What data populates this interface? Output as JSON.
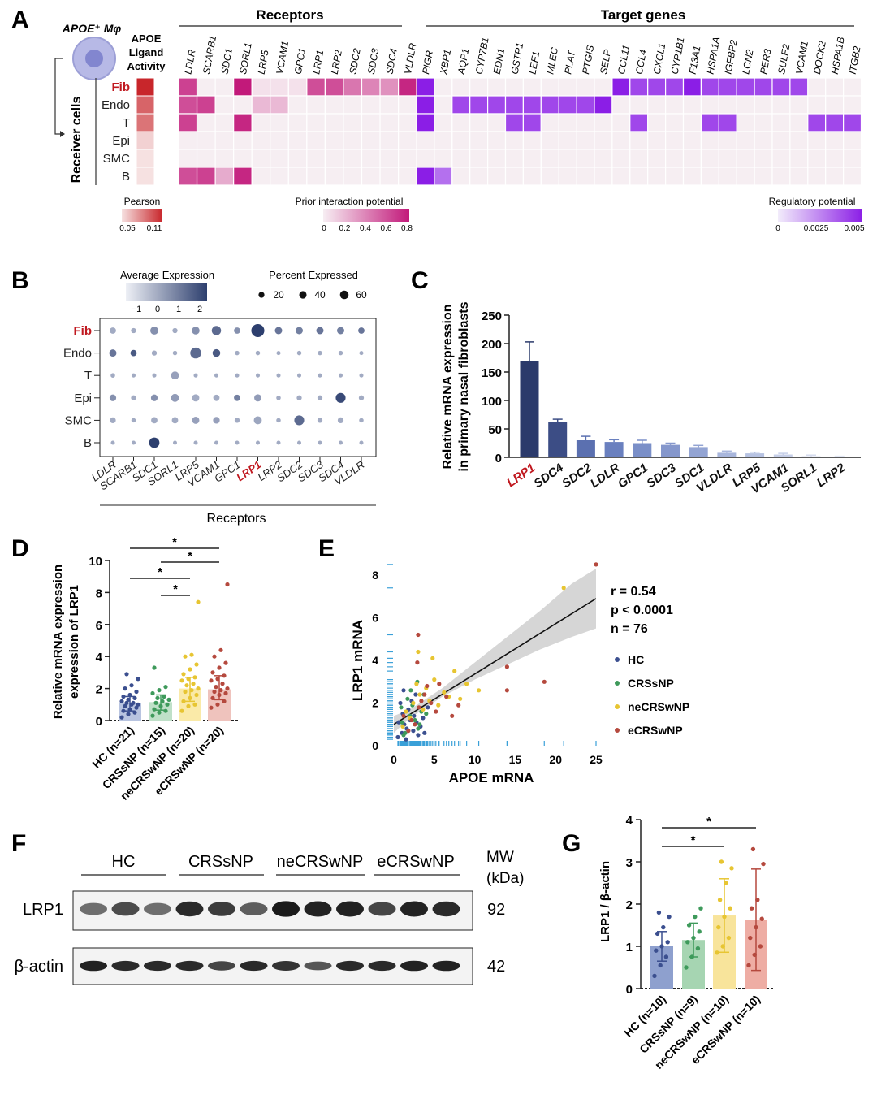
{
  "panels": {
    "A": "A",
    "B": "B",
    "C": "C",
    "D": "D",
    "E": "E",
    "F": "F",
    "G": "G"
  },
  "chart_data": [
    {
      "id": "A",
      "type": "heatmap",
      "title_cell": "APOE⁺ Mφ",
      "ligand_activity_label": "APOE Ligand Activity",
      "receiver_label": "Receiver cells",
      "rows": [
        "Fib",
        "Endo",
        "T",
        "Epi",
        "SMC",
        "B"
      ],
      "highlight_row": "Fib",
      "pearson": [
        0.11,
        0.09,
        0.085,
        0.055,
        0.05,
        0.05
      ],
      "receptors_header": "Receptors",
      "receptors": [
        "LDLR",
        "SCARB1",
        "SDC1",
        "SORL1",
        "LRP5",
        "VCAM1",
        "GPC1",
        "LRP1",
        "LRP2",
        "SDC2",
        "SDC3",
        "SDC4",
        "VLDLR"
      ],
      "receptor_matrix": [
        [
          0.65,
          0,
          0,
          0.8,
          0.05,
          0.05,
          0.05,
          0.6,
          0.6,
          0.45,
          0.4,
          0.35,
          0.75
        ],
        [
          0.6,
          0.65,
          0,
          0,
          0.2,
          0.2,
          0,
          0,
          0,
          0,
          0,
          0,
          0
        ],
        [
          0.65,
          0,
          0,
          0.75,
          0,
          0,
          0,
          0,
          0,
          0,
          0,
          0,
          0
        ],
        [
          0,
          0,
          0,
          0,
          0,
          0,
          0,
          0,
          0,
          0,
          0,
          0,
          0
        ],
        [
          0,
          0,
          0,
          0,
          0,
          0,
          0,
          0,
          0,
          0,
          0,
          0,
          0
        ],
        [
          0.6,
          0.65,
          0.25,
          0.75,
          0,
          0,
          0,
          0,
          0,
          0,
          0,
          0,
          0
        ]
      ],
      "targets_header": "Target genes",
      "targets": [
        "PIGR",
        "XBP1",
        "AQP1",
        "CYP7B1",
        "EDN1",
        "GSTP1",
        "LEF1",
        "MLEC",
        "PLAT",
        "PTGIS",
        "SELP",
        "CCL11",
        "CCL4",
        "CXCL1",
        "CYP1B1",
        "F13A1",
        "HSPA1A",
        "IGFBP2",
        "LCN2",
        "PER3",
        "SULF2",
        "VCAM1",
        "DOCK2",
        "HSPA1B",
        "ITGB2"
      ],
      "target_matrix": [
        [
          0.005,
          0,
          0,
          0,
          0,
          0,
          0,
          0,
          0,
          0,
          0,
          0.005,
          0.004,
          0.004,
          0.004,
          0.005,
          0.004,
          0.004,
          0.004,
          0.004,
          0.004,
          0.004,
          0,
          0,
          0
        ],
        [
          0.005,
          0,
          0.004,
          0.004,
          0.004,
          0.004,
          0.004,
          0.004,
          0.004,
          0.004,
          0.005,
          0,
          0,
          0,
          0,
          0,
          0,
          0,
          0,
          0,
          0,
          0,
          0,
          0,
          0
        ],
        [
          0.005,
          0,
          0,
          0,
          0,
          0.004,
          0.004,
          0,
          0,
          0,
          0,
          0,
          0.004,
          0,
          0,
          0,
          0.004,
          0.004,
          0,
          0,
          0,
          0,
          0.004,
          0.004,
          0.004
        ],
        [
          0,
          0,
          0,
          0,
          0,
          0,
          0,
          0,
          0,
          0,
          0,
          0,
          0,
          0,
          0,
          0,
          0,
          0,
          0,
          0,
          0,
          0,
          0,
          0,
          0
        ],
        [
          0,
          0,
          0,
          0,
          0,
          0,
          0,
          0,
          0,
          0,
          0,
          0,
          0,
          0,
          0,
          0,
          0,
          0,
          0,
          0,
          0,
          0,
          0,
          0,
          0
        ],
        [
          0.005,
          0.003,
          0,
          0,
          0,
          0,
          0,
          0,
          0,
          0,
          0,
          0,
          0,
          0,
          0,
          0,
          0,
          0,
          0,
          0,
          0,
          0,
          0,
          0,
          0
        ]
      ],
      "legend_pearson": {
        "title": "Pearson",
        "ticks": [
          "0.05",
          "0.11"
        ],
        "colors": [
          "#f6e1e1",
          "#c8262b"
        ]
      },
      "legend_prior": {
        "title": "Prior interaction potential",
        "ticks": [
          "0",
          "0.2",
          "0.4",
          "0.6",
          "0.8"
        ],
        "colors": [
          "#f7eef3",
          "#c2197a"
        ]
      },
      "legend_reg": {
        "title": "Regulatory potential",
        "ticks": [
          "0",
          "0.0025",
          "0.005"
        ],
        "colors": [
          "#f2ecfb",
          "#8b1ee6"
        ]
      },
      "empty_color": "#f6eef2"
    },
    {
      "id": "B",
      "type": "scatter",
      "subtype": "dotplot",
      "rows": [
        "Fib",
        "Endo",
        "T",
        "Epi",
        "SMC",
        "B"
      ],
      "highlight_row": "Fib",
      "columns": [
        "LDLR",
        "SCARB1",
        "SDC1",
        "SORL1",
        "LRP5",
        "VCAM1",
        "GPC1",
        "LRP1",
        "LRP2",
        "SDC2",
        "SDC3",
        "SDC4",
        "VLDLR"
      ],
      "highlight_column": "LRP1",
      "xlabel": "Receptors",
      "legend_expr": {
        "title": "Average Expression",
        "ticks": [
          "−1",
          "0",
          "1",
          "2"
        ],
        "colors": [
          "#eef0f6",
          "#2d3f6e"
        ]
      },
      "legend_pct": {
        "title": "Percent Expressed",
        "ticks": [
          20,
          40,
          60
        ]
      },
      "pct": [
        [
          10,
          5,
          20,
          5,
          18,
          30,
          10,
          70,
          15,
          15,
          15,
          15,
          10
        ],
        [
          15,
          10,
          5,
          3,
          45,
          18,
          3,
          3,
          2,
          3,
          3,
          3,
          2
        ],
        [
          3,
          2,
          2,
          20,
          2,
          2,
          2,
          2,
          2,
          2,
          2,
          2,
          2
        ],
        [
          12,
          5,
          12,
          20,
          15,
          10,
          10,
          15,
          3,
          5,
          5,
          35,
          5
        ],
        [
          8,
          3,
          10,
          10,
          15,
          12,
          5,
          20,
          3,
          35,
          5,
          8,
          3
        ],
        [
          2,
          2,
          40,
          2,
          2,
          2,
          2,
          2,
          2,
          2,
          2,
          2,
          2
        ]
      ],
      "expr": [
        [
          0,
          0,
          0.5,
          0,
          0.5,
          1.2,
          0.5,
          2,
          1,
          0.8,
          1,
          0.8,
          1
        ],
        [
          1,
          1.5,
          0,
          0,
          1.2,
          1.5,
          0,
          0,
          0,
          0,
          0,
          0,
          0
        ],
        [
          0,
          0,
          0,
          0.2,
          0,
          0,
          0,
          0,
          0,
          0,
          0,
          0,
          0
        ],
        [
          0.5,
          0,
          0.5,
          0.3,
          0,
          0,
          0.8,
          0.3,
          0,
          0,
          0,
          1.8,
          0
        ],
        [
          0,
          0,
          0,
          0,
          0.2,
          0.2,
          0,
          0.1,
          0,
          1.2,
          0,
          0,
          0
        ],
        [
          0,
          0,
          2,
          0,
          0,
          0,
          0,
          0,
          0,
          0,
          0,
          0,
          0
        ]
      ]
    },
    {
      "id": "C",
      "type": "bar",
      "categories": [
        "LRP1",
        "SDC4",
        "SDC2",
        "LDLR",
        "GPC1",
        "SDC3",
        "SDC1",
        "VLDLR",
        "LRP5",
        "VCAM1",
        "SORL1",
        "LRP2"
      ],
      "highlight_category": "LRP1",
      "values": [
        170,
        62,
        30,
        27,
        25,
        22,
        18,
        8,
        7,
        5,
        2,
        1
      ],
      "errors": [
        33,
        5,
        7,
        4,
        5,
        3,
        3,
        3,
        2,
        2,
        2,
        1
      ],
      "ylabel": "Relative mRNA expression in primary nasal fibroblasts",
      "ylim": [
        0,
        250
      ],
      "yticks": [
        0,
        50,
        100,
        150,
        200,
        250
      ],
      "colors": [
        "#2b3a6b",
        "#3c4d85",
        "#5b70b0",
        "#6a80bf",
        "#7a8fc8",
        "#8597cc",
        "#93a4d3",
        "#a8b6dc",
        "#b6c2e2",
        "#c6cfe8",
        "#d4dbee",
        "#e2e7f4"
      ]
    },
    {
      "id": "D",
      "type": "bar",
      "categories": [
        "HC (n=21)",
        "CRSsNP (n=15)",
        "neCRSwNP (n=20)",
        "eCRSwNP (n=20)"
      ],
      "values": [
        1.1,
        1.15,
        2.0,
        1.95
      ],
      "errors_low": [
        0.6,
        0.65,
        1.2,
        1.3
      ],
      "errors_high": [
        1.5,
        1.6,
        2.7,
        2.8
      ],
      "ylabel": "Relative mRNA expression of LRP1",
      "ylim": [
        0,
        10
      ],
      "yticks": [
        0,
        2,
        4,
        6,
        8,
        10
      ],
      "bar_colors": [
        "#b8c4e0",
        "#bfe0c8",
        "#faeaa8",
        "#efc3bd"
      ],
      "dot_colors": [
        "#3b4f8f",
        "#3e9a5b",
        "#e7c532",
        "#b5493e"
      ],
      "points": [
        [
          0.2,
          0.4,
          0.5,
          0.6,
          0.7,
          0.8,
          0.9,
          1.0,
          1.0,
          1.1,
          1.1,
          1.2,
          1.3,
          1.4,
          1.5,
          1.6,
          1.8,
          2.0,
          2.2,
          2.6,
          2.9
        ],
        [
          0.3,
          0.5,
          0.6,
          0.7,
          0.9,
          1.0,
          1.1,
          1.2,
          1.3,
          1.4,
          1.5,
          1.7,
          1.9,
          2.1,
          3.3
        ],
        [
          0.6,
          0.9,
          1.0,
          1.2,
          1.4,
          1.6,
          1.8,
          1.9,
          2.0,
          2.2,
          2.3,
          2.5,
          2.6,
          2.7,
          2.9,
          3.2,
          3.5,
          4.0,
          4.1,
          7.4
        ],
        [
          0.8,
          1.0,
          1.2,
          1.4,
          1.6,
          1.7,
          1.8,
          1.9,
          2.0,
          2.1,
          2.3,
          2.5,
          2.6,
          2.8,
          3.0,
          3.3,
          3.6,
          4.0,
          4.4,
          8.5
        ]
      ],
      "significance": [
        {
          "from": 0,
          "to": 3,
          "label": "*"
        },
        {
          "from": 1,
          "to": 3,
          "label": "*"
        },
        {
          "from": 0,
          "to": 2,
          "label": "*"
        },
        {
          "from": 1,
          "to": 2,
          "label": "*"
        }
      ]
    },
    {
      "id": "E",
      "type": "scatter",
      "xlabel": "APOE mRNA",
      "ylabel": "LRP1 mRNA",
      "xlim": [
        0,
        25
      ],
      "ylim": [
        0,
        8
      ],
      "xticks": [
        0,
        5,
        10,
        15,
        20,
        25
      ],
      "yticks": [
        0,
        2,
        4,
        6,
        8
      ],
      "stats": [
        "r = 0.54",
        "p < 0.0001",
        "n = 76"
      ],
      "fit": {
        "x": [
          0,
          25
        ],
        "y": [
          1.0,
          6.9
        ]
      },
      "band": {
        "x": [
          0,
          2,
          4,
          6,
          8,
          10,
          14,
          18,
          22,
          25
        ],
        "lo": [
          0.6,
          1.3,
          1.8,
          2.3,
          2.7,
          3.1,
          3.8,
          4.5,
          5.1,
          5.5
        ],
        "hi": [
          1.4,
          1.7,
          2.2,
          2.7,
          3.3,
          3.9,
          5.1,
          6.3,
          7.6,
          8.3
        ]
      },
      "series": [
        {
          "name": "HC",
          "color": "#3b4f8f",
          "x": [
            0.5,
            1.0,
            1.3,
            1.6,
            2.0,
            2.4,
            2.8,
            3.0,
            3.3,
            3.6,
            1.1,
            1.8,
            2.5,
            0.8,
            1.5,
            2.2,
            3.8,
            4.2,
            0.6,
            2.7,
            1.2
          ],
          "y": [
            0.4,
            0.6,
            1.0,
            0.8,
            1.2,
            0.7,
            1.1,
            0.5,
            0.9,
            1.3,
            1.5,
            1.7,
            1.4,
            2.0,
            0.3,
            2.1,
            0.6,
            1.8,
            1.1,
            2.4,
            2.6
          ]
        },
        {
          "name": "CRSsNP",
          "color": "#3e9a5b",
          "x": [
            1.0,
            1.4,
            2.0,
            2.6,
            3.0,
            3.4,
            1.7,
            2.3,
            4.0,
            2.9,
            1.2,
            3.7,
            2.1,
            0.9,
            3.2
          ],
          "y": [
            1.1,
            0.6,
            1.4,
            1.2,
            0.8,
            1.6,
            2.2,
            1.9,
            1.5,
            3.0,
            0.5,
            2.4,
            2.6,
            1.8,
            1.0
          ]
        },
        {
          "name": "neCRSwNP",
          "color": "#e7c532",
          "x": [
            1.5,
            2.4,
            3.2,
            4.0,
            5.0,
            6.2,
            7.5,
            9.0,
            10.5,
            3.0,
            4.4,
            2.0,
            5.5,
            8.2,
            21.0,
            1.1,
            3.6,
            6.8,
            2.8,
            4.8
          ],
          "y": [
            1.6,
            2.0,
            2.4,
            2.7,
            3.1,
            2.5,
            3.5,
            2.9,
            2.6,
            4.4,
            2.1,
            1.3,
            1.9,
            2.2,
            7.4,
            0.9,
            1.7,
            2.3,
            2.9,
            4.1
          ]
        },
        {
          "name": "eCRSwNP",
          "color": "#b5493e",
          "x": [
            1.2,
            2.2,
            3.1,
            3.8,
            4.6,
            5.6,
            6.5,
            8.0,
            14.0,
            14.0,
            18.6,
            25.0,
            3.0,
            2.6,
            5.2,
            7.2,
            1.8,
            4.1,
            2.9,
            3.4
          ],
          "y": [
            1.4,
            1.2,
            1.8,
            2.4,
            2.0,
            2.9,
            2.3,
            1.9,
            3.7,
            2.6,
            3.0,
            8.5,
            5.2,
            1.0,
            1.6,
            1.4,
            0.7,
            2.8,
            3.9,
            2.1
          ]
        }
      ]
    },
    {
      "id": "F",
      "type": "other",
      "subtype": "western_blot",
      "groups": [
        "HC",
        "CRSsNP",
        "neCRSwNP",
        "eCRSwNP"
      ],
      "mw_header": "MW (kDa)",
      "bands": [
        {
          "label": "LRP1",
          "mw": "92",
          "intensity": [
            0.45,
            0.65,
            0.45,
            0.85,
            0.75,
            0.55,
            0.95,
            0.9,
            0.9,
            0.7,
            0.9,
            0.85
          ]
        },
        {
          "label": "β-actin",
          "mw": "42",
          "intensity": [
            0.9,
            0.85,
            0.85,
            0.85,
            0.7,
            0.85,
            0.8,
            0.6,
            0.85,
            0.85,
            0.9,
            0.9
          ]
        }
      ]
    },
    {
      "id": "G",
      "type": "bar",
      "categories": [
        "HC (n=10)",
        "CRSsNP (n=9)",
        "neCRSwNP (n=10)",
        "eCRSwNP (n=10)"
      ],
      "values": [
        1.0,
        1.15,
        1.73,
        1.63
      ],
      "sd": [
        0.35,
        0.4,
        0.87,
        1.2
      ],
      "ylabel": "LRP1 / β-actin",
      "ylim": [
        0,
        4
      ],
      "yticks": [
        0,
        1,
        2,
        3,
        4
      ],
      "bar_colors": [
        "#8ea0ce",
        "#a6d5b2",
        "#f8e49b",
        "#eeada4"
      ],
      "dot_colors": [
        "#3b4f8f",
        "#3e9a5b",
        "#e7c532",
        "#b5493e"
      ],
      "points": [
        [
          0.3,
          0.55,
          0.75,
          0.9,
          1.0,
          1.1,
          1.3,
          1.45,
          1.7,
          1.8
        ],
        [
          0.5,
          0.75,
          0.95,
          1.1,
          1.2,
          1.35,
          1.5,
          1.7,
          1.9
        ],
        [
          0.85,
          1.0,
          1.2,
          1.45,
          1.7,
          1.9,
          2.1,
          2.5,
          2.85,
          3.0
        ],
        [
          0.55,
          0.8,
          1.0,
          1.2,
          1.45,
          1.65,
          1.9,
          2.1,
          2.95,
          3.3
        ]
      ],
      "significance": [
        {
          "from": 0,
          "to": 3,
          "label": "*"
        },
        {
          "from": 0,
          "to": 2,
          "label": "*"
        }
      ]
    }
  ]
}
